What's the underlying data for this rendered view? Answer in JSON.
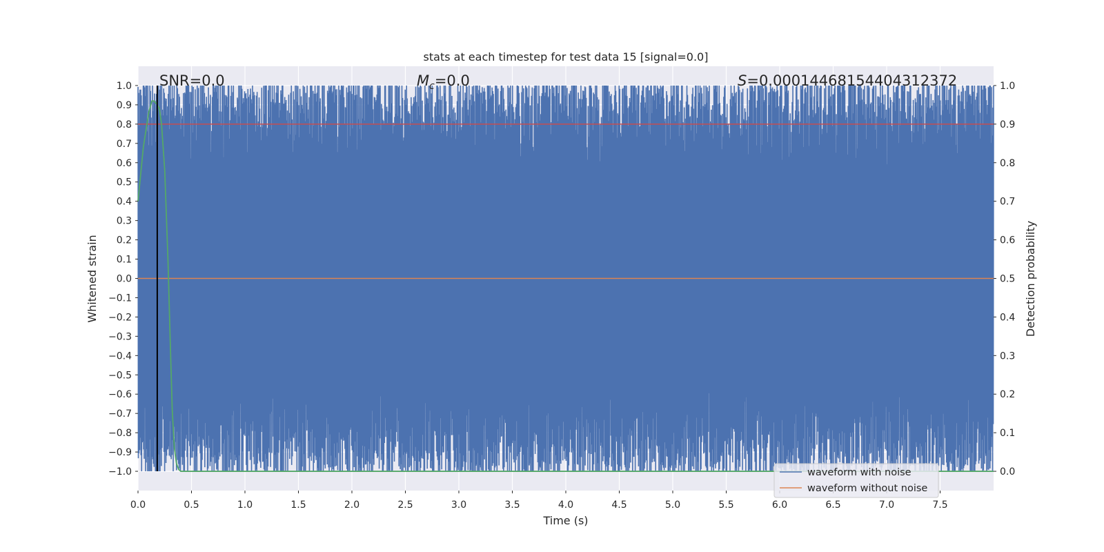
{
  "chart_data": {
    "type": "line",
    "title": "stats at each timestep for test data 15 [signal=0.0]",
    "xlabel": "Time (s)",
    "ylabel_left": "Whitened strain",
    "ylabel_right": "Detection probability",
    "xlim": [
      0.0,
      8.0
    ],
    "ylim_left": [
      -1.1,
      1.1
    ],
    "ylim_right": [
      -0.05,
      1.05
    ],
    "x_ticks": [
      0.0,
      0.5,
      1.0,
      1.5,
      2.0,
      2.5,
      3.0,
      3.5,
      4.0,
      4.5,
      5.0,
      5.5,
      6.0,
      6.5,
      7.0,
      7.5
    ],
    "x_tick_labels": [
      "0.0",
      "0.5",
      "1.0",
      "1.5",
      "2.0",
      "2.5",
      "3.0",
      "3.5",
      "4.0",
      "4.5",
      "5.0",
      "5.5",
      "6.0",
      "6.5",
      "7.0",
      "7.5"
    ],
    "y_left_ticks": [
      1.0,
      0.9,
      0.8,
      0.7,
      0.6,
      0.5,
      0.4,
      0.3,
      0.2,
      0.1,
      0.0,
      -0.1,
      -0.2,
      -0.3,
      -0.4,
      -0.5,
      -0.6,
      -0.7,
      -0.8,
      -0.9,
      -1.0
    ],
    "y_left_tick_labels": [
      "1.0",
      "0.9",
      "0.8",
      "0.7",
      "0.6",
      "0.5",
      "0.4",
      "0.3",
      "0.2",
      "0.1",
      "0.0",
      "−0.1",
      "−0.2",
      "−0.3",
      "−0.4",
      "−0.5",
      "−0.6",
      "−0.7",
      "−0.8",
      "−0.9",
      "−1.0"
    ],
    "y_right_ticks": [
      1.0,
      0.9,
      0.8,
      0.7,
      0.6,
      0.5,
      0.4,
      0.3,
      0.2,
      0.1,
      0.0
    ],
    "y_right_tick_labels": [
      "1.0",
      "0.9",
      "0.8",
      "0.7",
      "0.6",
      "0.5",
      "0.4",
      "0.3",
      "0.2",
      "0.1",
      "0.0"
    ],
    "annotations": {
      "snr": "SNR=0.0",
      "mc_symbol": "M",
      "mc_subscript": "c",
      "mc_value": "=0.0",
      "s_symbol": "S",
      "s_value": "=0.00014468154404312372"
    },
    "series": [
      {
        "name": "waveform with noise",
        "axis": "left",
        "color": "#4c72b0",
        "description_type": "dense noise",
        "envelope": [
          -1.0,
          1.0
        ]
      },
      {
        "name": "waveform without noise",
        "axis": "left",
        "color": "#dd8452",
        "values_constant": 0.0
      },
      {
        "name": "detection probability",
        "axis": "right",
        "color": "#55a868",
        "x": [
          0.0,
          0.05,
          0.1,
          0.13,
          0.15,
          0.18,
          0.2,
          0.22,
          0.25,
          0.28,
          0.3,
          0.32,
          0.34,
          0.36,
          0.38,
          0.4,
          8.0
        ],
        "y": [
          0.7,
          0.84,
          0.93,
          0.96,
          0.96,
          0.95,
          0.94,
          0.9,
          0.78,
          0.55,
          0.35,
          0.16,
          0.06,
          0.02,
          0.005,
          0.0,
          0.0
        ]
      },
      {
        "name": "threshold",
        "axis": "right",
        "color": "#c44e52",
        "values_constant": 0.9
      }
    ],
    "vertical_line": {
      "x": 0.18,
      "color": "#000000"
    },
    "legend": {
      "placement": "lower-right",
      "entries": [
        {
          "label": "waveform with noise",
          "color": "#4c72b0"
        },
        {
          "label": "waveform without noise",
          "color": "#dd8452"
        }
      ]
    },
    "background_color": "#eaeaf2",
    "grid": true
  }
}
